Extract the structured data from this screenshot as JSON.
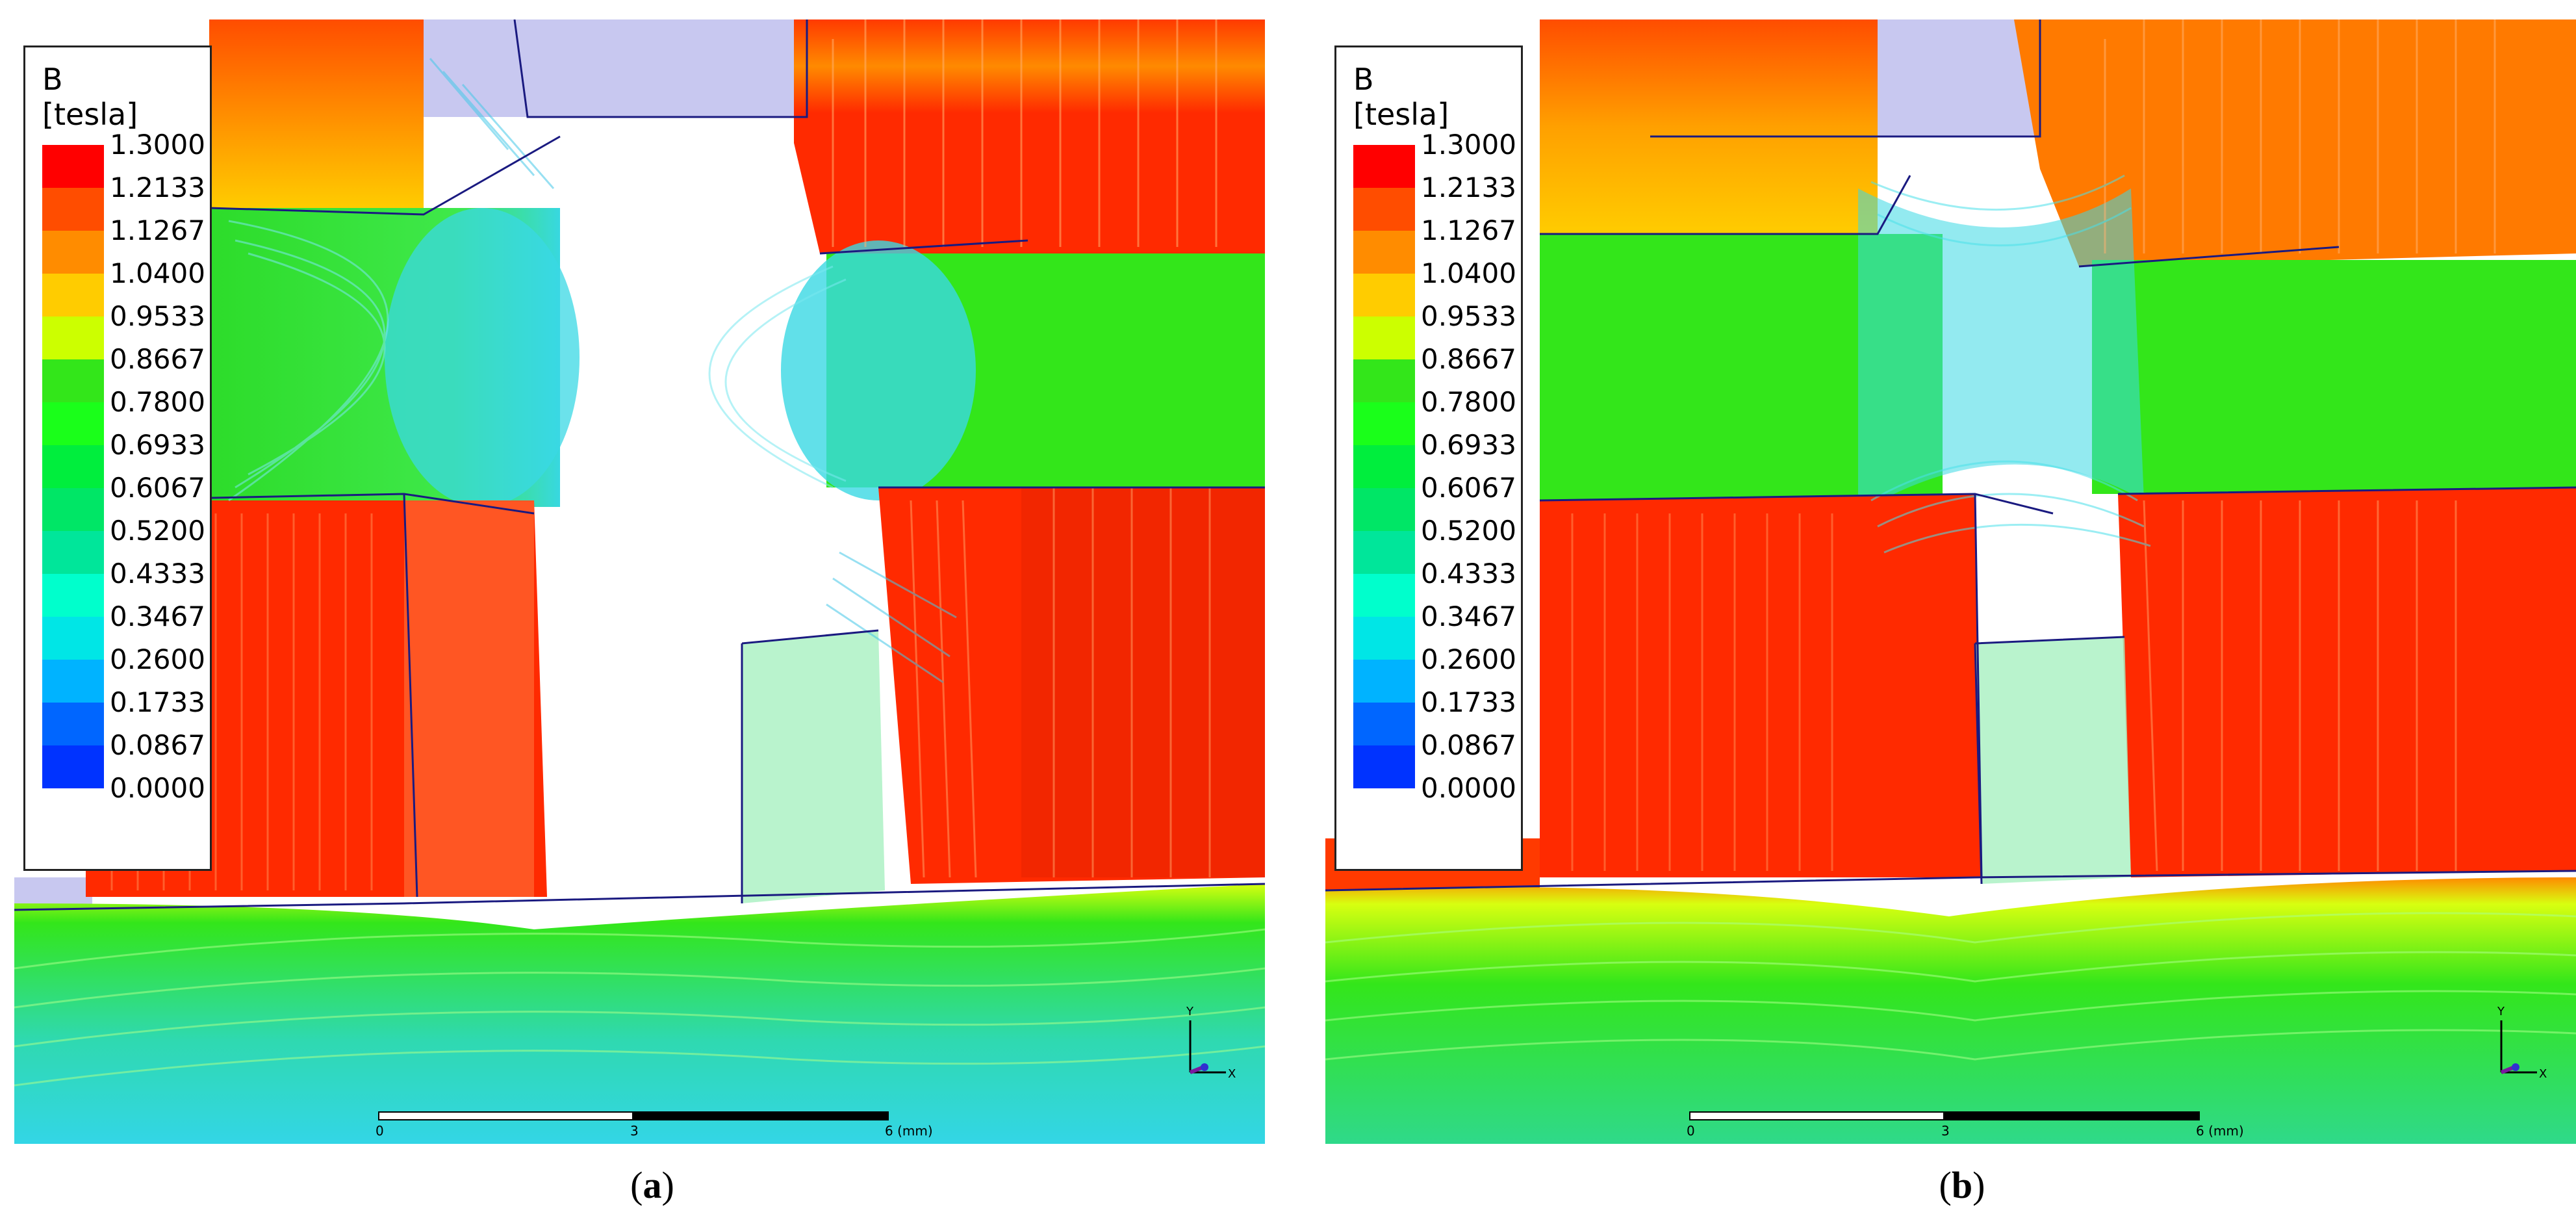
{
  "colors": {
    "red": "#ff2a00",
    "orange": "#ff7a00",
    "green": "#33e61a",
    "cyan": "#33d6e6",
    "air_gap": "#c8c8f0",
    "box_edge": "#1a1a80"
  },
  "legend": {
    "title": "B",
    "unit": "[tesla]",
    "levels": [
      "1.3000",
      "1.2133",
      "1.1267",
      "1.0400",
      "0.9533",
      "0.8667",
      "0.7800",
      "0.6933",
      "0.6067",
      "0.5200",
      "0.4333",
      "0.3467",
      "0.2600",
      "0.1733",
      "0.0867",
      "0.0000"
    ],
    "swatch_colors": [
      "#ff0000",
      "#ff4d00",
      "#ff8c00",
      "#ffcc00",
      "#ccff00",
      "#33e61a",
      "#1aff1a",
      "#00ee3d",
      "#00e666",
      "#00e69a",
      "#00ffcc",
      "#00e6e6",
      "#00b3ff",
      "#0066ff",
      "#0033ff",
      "#0000ff"
    ]
  },
  "scalebar": {
    "ticks": [
      "0",
      "3",
      "6 (mm)"
    ]
  },
  "axis": {
    "y_label": "Y",
    "x_label": "X"
  },
  "panels": [
    {
      "letter": "a"
    },
    {
      "letter": "b"
    }
  ]
}
